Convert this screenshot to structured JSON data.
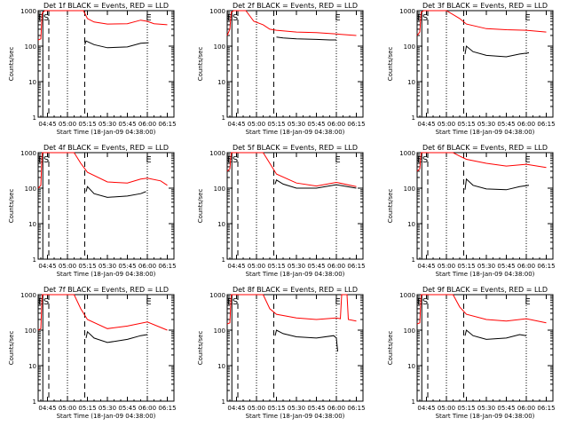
{
  "chart_data": [
    {
      "type": "line",
      "title": "Det 1f BLACK = Events, RED = LLD",
      "xlabel": "Start Time (18-Jan-09 04:38:00)",
      "ylabel": "Counts/sec",
      "yscale": "log",
      "ylim": [
        1,
        1000
      ],
      "x_ticks": [
        "04:45",
        "05:00",
        "05:15",
        "05:30",
        "05:45",
        "06:00",
        "06:15"
      ],
      "y_ticks": [
        "1",
        "10",
        "100",
        "1000"
      ],
      "markers": [
        "E",
        "S",
        "E"
      ],
      "series": [
        {
          "name": "RED = LLD",
          "color": "#ff0000",
          "points": [
            [
              "04:38",
              150
            ],
            [
              "04:40",
              160
            ],
            [
              "04:41",
              850
            ],
            [
              "04:43",
              1000
            ],
            [
              "05:12",
              1000
            ],
            [
              "05:15",
              600
            ],
            [
              "05:20",
              480
            ],
            [
              "05:30",
              420
            ],
            [
              "05:45",
              430
            ],
            [
              "05:55",
              540
            ],
            [
              "06:00",
              500
            ],
            [
              "06:05",
              430
            ],
            [
              "06:15",
              400
            ]
          ]
        },
        {
          "name": "BLACK = Events",
          "color": "#000000",
          "points": [
            [
              "05:13",
              110
            ],
            [
              "05:14",
              140
            ],
            [
              "05:20",
              110
            ],
            [
              "05:30",
              90
            ],
            [
              "05:45",
              95
            ],
            [
              "05:55",
              120
            ],
            [
              "06:01",
              125
            ]
          ]
        }
      ]
    },
    {
      "type": "line",
      "title": "Det 2f BLACK = Events, RED = LLD",
      "xlabel": "Start Time (18-Jan-09 04:38:00)",
      "ylabel": "Counts/sec",
      "yscale": "log",
      "ylim": [
        1,
        1000
      ],
      "x_ticks": [
        "04:45",
        "05:00",
        "05:15",
        "05:30",
        "05:45",
        "06:00",
        "06:15"
      ],
      "y_ticks": [
        "1",
        "10",
        "100",
        "1000"
      ],
      "markers": [
        "E",
        "S",
        "E"
      ],
      "series": [
        {
          "name": "RED = LLD",
          "color": "#ff0000",
          "points": [
            [
              "04:38",
              200
            ],
            [
              "04:40",
              300
            ],
            [
              "04:41",
              900
            ],
            [
              "04:43",
              1000
            ],
            [
              "04:52",
              1000
            ],
            [
              "04:58",
              500
            ],
            [
              "05:05",
              400
            ],
            [
              "05:10",
              300
            ],
            [
              "05:15",
              280
            ],
            [
              "05:30",
              250
            ],
            [
              "05:45",
              240
            ],
            [
              "06:00",
              220
            ],
            [
              "06:15",
              200
            ]
          ]
        },
        {
          "name": "BLACK = Events",
          "color": "#000000",
          "points": [
            [
              "05:15",
              180
            ],
            [
              "05:20",
              170
            ],
            [
              "05:30",
              160
            ],
            [
              "05:45",
              155
            ],
            [
              "05:55",
              150
            ],
            [
              "06:00",
              150
            ]
          ]
        }
      ]
    },
    {
      "type": "line",
      "title": "Det 3f BLACK = Events, RED = LLD",
      "xlabel": "Start Time (18-Jan-09 04:38:00)",
      "ylabel": "Counts/sec",
      "yscale": "log",
      "ylim": [
        1,
        1000
      ],
      "x_ticks": [
        "04:45",
        "05:00",
        "05:15",
        "05:30",
        "05:45",
        "06:00",
        "06:15"
      ],
      "y_ticks": [
        "1",
        "10",
        "100",
        "1000"
      ],
      "markers": [
        "E",
        "S",
        "E"
      ],
      "series": [
        {
          "name": "RED = LLD",
          "color": "#ff0000",
          "points": [
            [
              "04:38",
              200
            ],
            [
              "04:40",
              250
            ],
            [
              "04:41",
              900
            ],
            [
              "04:43",
              1000
            ],
            [
              "05:00",
              1000
            ],
            [
              "05:10",
              600
            ],
            [
              "05:15",
              420
            ],
            [
              "05:30",
              310
            ],
            [
              "05:45",
              290
            ],
            [
              "06:00",
              280
            ],
            [
              "06:15",
              250
            ]
          ]
        },
        {
          "name": "BLACK = Events",
          "color": "#000000",
          "points": [
            [
              "05:14",
              60
            ],
            [
              "05:15",
              100
            ],
            [
              "05:20",
              70
            ],
            [
              "05:30",
              55
            ],
            [
              "05:45",
              50
            ],
            [
              "05:55",
              60
            ],
            [
              "06:02",
              65
            ]
          ]
        }
      ]
    },
    {
      "type": "line",
      "title": "Det 4f BLACK = Events, RED = LLD",
      "xlabel": "Start Time (18-Jan-09 04:38:00)",
      "ylabel": "Counts/sec",
      "yscale": "log",
      "ylim": [
        1,
        1000
      ],
      "x_ticks": [
        "04:45",
        "05:00",
        "05:15",
        "05:30",
        "05:45",
        "06:00",
        "06:15"
      ],
      "y_ticks": [
        "1",
        "10",
        "100",
        "1000"
      ],
      "markers": [
        "E",
        "S",
        "E"
      ],
      "series": [
        {
          "name": "RED = LLD",
          "color": "#ff0000",
          "points": [
            [
              "04:38",
              100
            ],
            [
              "04:40",
              120
            ],
            [
              "04:41",
              1000
            ],
            [
              "04:46",
              1000
            ],
            [
              "05:05",
              1000
            ],
            [
              "05:10",
              500
            ],
            [
              "05:15",
              280
            ],
            [
              "05:30",
              150
            ],
            [
              "05:45",
              140
            ],
            [
              "05:55",
              180
            ],
            [
              "06:00",
              190
            ],
            [
              "06:10",
              160
            ],
            [
              "06:15",
              120
            ]
          ]
        },
        {
          "name": "BLACK = Events",
          "color": "#000000",
          "points": [
            [
              "05:14",
              80
            ],
            [
              "05:15",
              110
            ],
            [
              "05:20",
              70
            ],
            [
              "05:30",
              55
            ],
            [
              "05:45",
              60
            ],
            [
              "05:55",
              70
            ],
            [
              "05:59",
              80
            ]
          ]
        }
      ]
    },
    {
      "type": "line",
      "title": "Det 5f BLACK = Events, RED = LLD",
      "xlabel": "Start Time (18-Jan-09 04:38:00)",
      "ylabel": "Counts/sec",
      "yscale": "log",
      "ylim": [
        1,
        1000
      ],
      "x_ticks": [
        "04:45",
        "05:00",
        "05:15",
        "05:30",
        "05:45",
        "06:00",
        "06:15"
      ],
      "y_ticks": [
        "1",
        "10",
        "100",
        "1000"
      ],
      "markers": [
        "E",
        "S",
        "E"
      ],
      "series": [
        {
          "name": "RED = LLD",
          "color": "#ff0000",
          "points": [
            [
              "04:38",
              300
            ],
            [
              "04:40",
              350
            ],
            [
              "04:41",
              1000
            ],
            [
              "04:47",
              1000
            ],
            [
              "05:05",
              1000
            ],
            [
              "05:10",
              500
            ],
            [
              "05:15",
              250
            ],
            [
              "05:30",
              140
            ],
            [
              "05:45",
              115
            ],
            [
              "06:00",
              145
            ],
            [
              "06:15",
              110
            ]
          ]
        },
        {
          "name": "BLACK = Events",
          "color": "#000000",
          "points": [
            [
              "05:14",
              130
            ],
            [
              "05:15",
              170
            ],
            [
              "05:20",
              130
            ],
            [
              "05:30",
              100
            ],
            [
              "05:45",
              100
            ],
            [
              "06:00",
              125
            ],
            [
              "06:15",
              100
            ]
          ]
        }
      ]
    },
    {
      "type": "line",
      "title": "Det 6f BLACK = Events, RED = LLD",
      "xlabel": "Start Time (18-Jan-09 04:38:00)",
      "ylabel": "Counts/sec",
      "yscale": "log",
      "ylim": [
        1,
        1000
      ],
      "x_ticks": [
        "04:45",
        "05:00",
        "05:15",
        "05:30",
        "05:45",
        "06:00",
        "06:15"
      ],
      "y_ticks": [
        "1",
        "10",
        "100",
        "1000"
      ],
      "markers": [
        "E",
        "S",
        "E"
      ],
      "series": [
        {
          "name": "RED = LLD",
          "color": "#ff0000",
          "points": [
            [
              "04:38",
              300
            ],
            [
              "04:40",
              350
            ],
            [
              "04:41",
              1000
            ],
            [
              "04:46",
              1000
            ],
            [
              "05:05",
              1000
            ],
            [
              "05:10",
              800
            ],
            [
              "05:15",
              650
            ],
            [
              "05:30",
              500
            ],
            [
              "05:45",
              420
            ],
            [
              "06:00",
              470
            ],
            [
              "06:15",
              380
            ]
          ]
        },
        {
          "name": "BLACK = Events",
          "color": "#000000",
          "points": [
            [
              "05:14",
              90
            ],
            [
              "05:15",
              180
            ],
            [
              "05:20",
              120
            ],
            [
              "05:30",
              95
            ],
            [
              "05:45",
              90
            ],
            [
              "05:55",
              110
            ],
            [
              "06:02",
              120
            ]
          ]
        }
      ]
    },
    {
      "type": "line",
      "title": "Det 7f BLACK = Events, RED = LLD",
      "xlabel": "Start Time (18-Jan-09 04:38:00)",
      "ylabel": "Counts/sec",
      "yscale": "log",
      "ylim": [
        1,
        1000
      ],
      "x_ticks": [
        "04:45",
        "05:00",
        "05:15",
        "05:30",
        "05:45",
        "06:00",
        "06:15"
      ],
      "y_ticks": [
        "1",
        "10",
        "100",
        "1000"
      ],
      "markers": [
        "E",
        "S",
        "E"
      ],
      "series": [
        {
          "name": "RED = LLD",
          "color": "#ff0000",
          "points": [
            [
              "04:38",
              100
            ],
            [
              "04:40",
              110
            ],
            [
              "04:41",
              1000
            ],
            [
              "04:45",
              1000
            ],
            [
              "05:05",
              1000
            ],
            [
              "05:10",
              400
            ],
            [
              "05:15",
              200
            ],
            [
              "05:30",
              110
            ],
            [
              "05:45",
              130
            ],
            [
              "06:00",
              170
            ],
            [
              "06:15",
              100
            ]
          ]
        },
        {
          "name": "BLACK = Events",
          "color": "#000000",
          "points": [
            [
              "05:14",
              60
            ],
            [
              "05:15",
              90
            ],
            [
              "05:20",
              60
            ],
            [
              "05:30",
              45
            ],
            [
              "05:45",
              55
            ],
            [
              "05:55",
              70
            ],
            [
              "06:00",
              75
            ]
          ]
        }
      ]
    },
    {
      "type": "line",
      "title": "Det 8f BLACK = Events, RED = LLD",
      "xlabel": "Start Time (18-Jan-09 04:38:00)",
      "ylabel": "Counts/sec",
      "yscale": "log",
      "ylim": [
        1,
        1000
      ],
      "x_ticks": [
        "04:45",
        "05:00",
        "05:15",
        "05:30",
        "05:45",
        "06:00",
        "06:15"
      ],
      "y_ticks": [
        "1",
        "10",
        "100",
        "1000"
      ],
      "markers": [
        "E",
        "S",
        "E"
      ],
      "series": [
        {
          "name": "RED = LLD",
          "color": "#ff0000",
          "points": [
            [
              "04:38",
              150
            ],
            [
              "04:40",
              160
            ],
            [
              "04:41",
              1000
            ],
            [
              "04:45",
              1000
            ],
            [
              "05:05",
              1000
            ],
            [
              "05:10",
              400
            ],
            [
              "05:15",
              280
            ],
            [
              "05:30",
              220
            ],
            [
              "05:45",
              200
            ],
            [
              "06:00",
              220
            ],
            [
              "06:03",
              210
            ],
            [
              "06:04",
              1000
            ],
            [
              "06:08",
              1000
            ],
            [
              "06:09",
              200
            ],
            [
              "06:15",
              180
            ]
          ]
        },
        {
          "name": "BLACK = Events",
          "color": "#000000",
          "points": [
            [
              "05:14",
              70
            ],
            [
              "05:15",
              100
            ],
            [
              "05:20",
              80
            ],
            [
              "05:30",
              65
            ],
            [
              "05:45",
              60
            ],
            [
              "05:58",
              70
            ],
            [
              "06:00",
              60
            ],
            [
              "06:01",
              25
            ]
          ]
        }
      ]
    },
    {
      "type": "line",
      "title": "Det 9f BLACK = Events, RED = LLD",
      "xlabel": "Start Time (18-Jan-09 04:38:00)",
      "ylabel": "Counts/sec",
      "yscale": "log",
      "ylim": [
        1,
        1000
      ],
      "x_ticks": [
        "04:45",
        "05:00",
        "05:15",
        "05:30",
        "05:45",
        "06:00",
        "06:15"
      ],
      "y_ticks": [
        "1",
        "10",
        "100",
        "1000"
      ],
      "markers": [
        "E",
        "S",
        "E"
      ],
      "series": [
        {
          "name": "RED = LLD",
          "color": "#ff0000",
          "points": [
            [
              "04:38",
              150
            ],
            [
              "04:40",
              160
            ],
            [
              "04:41",
              1000
            ],
            [
              "04:46",
              1000
            ],
            [
              "05:05",
              1000
            ],
            [
              "05:10",
              450
            ],
            [
              "05:15",
              280
            ],
            [
              "05:30",
              200
            ],
            [
              "05:45",
              180
            ],
            [
              "06:00",
              210
            ],
            [
              "06:15",
              160
            ]
          ]
        },
        {
          "name": "BLACK = Events",
          "color": "#000000",
          "points": [
            [
              "05:14",
              70
            ],
            [
              "05:15",
              100
            ],
            [
              "05:20",
              70
            ],
            [
              "05:30",
              55
            ],
            [
              "05:45",
              60
            ],
            [
              "05:55",
              75
            ],
            [
              "06:00",
              70
            ]
          ]
        }
      ]
    }
  ]
}
